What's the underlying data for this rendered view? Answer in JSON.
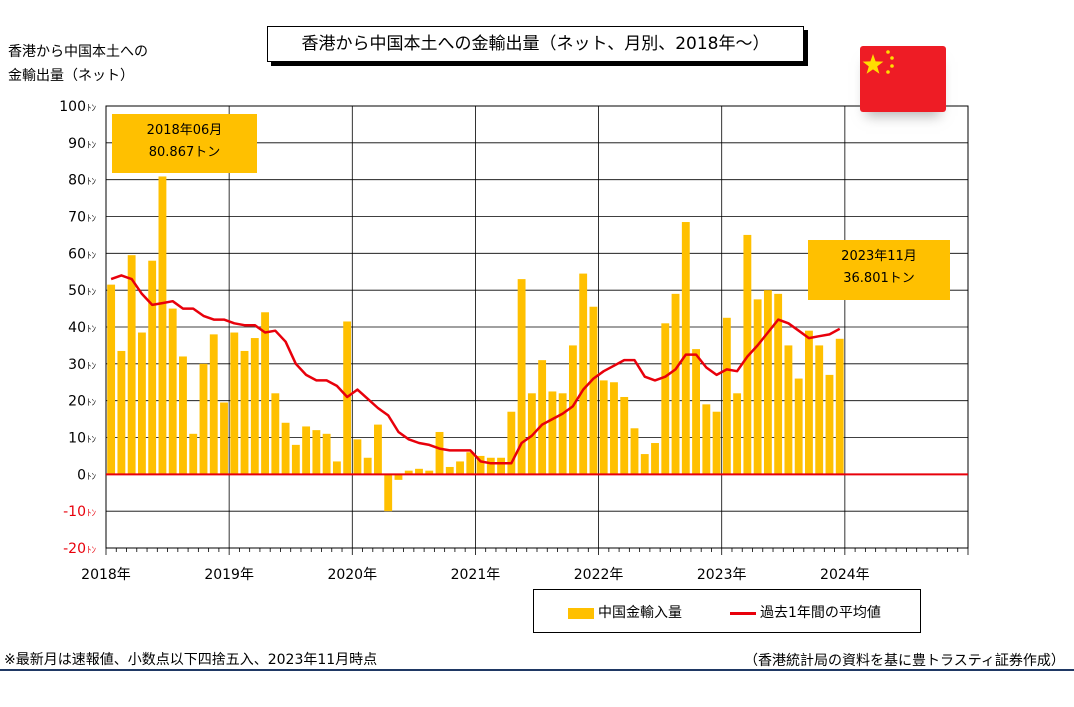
{
  "chart_data": {
    "type": "bar",
    "title": "香港から中国本土への金輸出量（ネット、月別、2018年～）",
    "ylabel_lines": [
      "香港から中国本土への",
      "金輸出量（ネット）"
    ],
    "yticks": [
      "100",
      "90",
      "80",
      "70",
      "60",
      "50",
      "40",
      "30",
      "20",
      "10",
      "0",
      "-10",
      "-20"
    ],
    "ytick_unit": "ﾄﾝ",
    "ylim": [
      -20,
      100
    ],
    "xticks": [
      "2018年",
      "2019年",
      "2020年",
      "2021年",
      "2022年",
      "2023年",
      "2024年"
    ],
    "grid": true,
    "legend_position": "bottom-right",
    "start": "2018-01",
    "series": [
      {
        "name": "中国金輸入量",
        "type": "bar",
        "color": "#FFC000",
        "values": [
          51.5,
          33.5,
          59.5,
          38.5,
          58,
          80.867,
          45,
          32,
          11,
          30,
          38,
          19.5,
          38.5,
          33.5,
          37,
          44,
          22,
          14,
          8,
          13,
          12,
          11,
          3.5,
          41.5,
          9.5,
          4.5,
          13.5,
          -10,
          -1.5,
          1,
          1.5,
          1,
          11.5,
          2,
          3.5,
          6,
          5,
          4.5,
          4.5,
          17,
          53,
          22,
          31,
          22.5,
          22,
          35,
          54.5,
          45.5,
          25.5,
          25,
          21,
          12.5,
          5.5,
          8.5,
          41,
          49,
          68.5,
          34,
          19,
          17,
          42.5,
          22,
          65,
          47.5,
          50,
          49,
          35,
          26,
          39,
          35,
          27,
          36.801
        ]
      },
      {
        "name": "過去1年間の平均値",
        "type": "line",
        "color": "#E8000B",
        "values": [
          53,
          54,
          53,
          49,
          46,
          46.5,
          47,
          45,
          45,
          43,
          42,
          42,
          41,
          40.5,
          40.5,
          38.5,
          39,
          36,
          30,
          27,
          25.5,
          25.5,
          24,
          21,
          23,
          20.5,
          18,
          16,
          11.5,
          9.5,
          8.5,
          8,
          7,
          6.5,
          6.5,
          6.5,
          3.5,
          3,
          3,
          3,
          8.5,
          10.5,
          13.5,
          15,
          16.5,
          18.5,
          23,
          26,
          28,
          29.5,
          31,
          31,
          26.5,
          25.5,
          26.5,
          28.5,
          32.5,
          32.5,
          29,
          27,
          28.5,
          28,
          32,
          35,
          38.5,
          42,
          41,
          39,
          37,
          37.5,
          38,
          39.5
        ]
      }
    ],
    "annotations": [
      {
        "date": "2018年06月",
        "value": "80.867トン"
      },
      {
        "date": "2023年11月",
        "value": "36.801トン"
      }
    ]
  },
  "flag": {
    "name": "china-flag-icon",
    "background": "#EE1C25",
    "star_color": "#FFDE00"
  },
  "footnote": "※最新月は速報値、小数点以下四捨五入、2023年11月時点",
  "source": "（香港統計局の資料を基に豊トラスティ証券作成）"
}
